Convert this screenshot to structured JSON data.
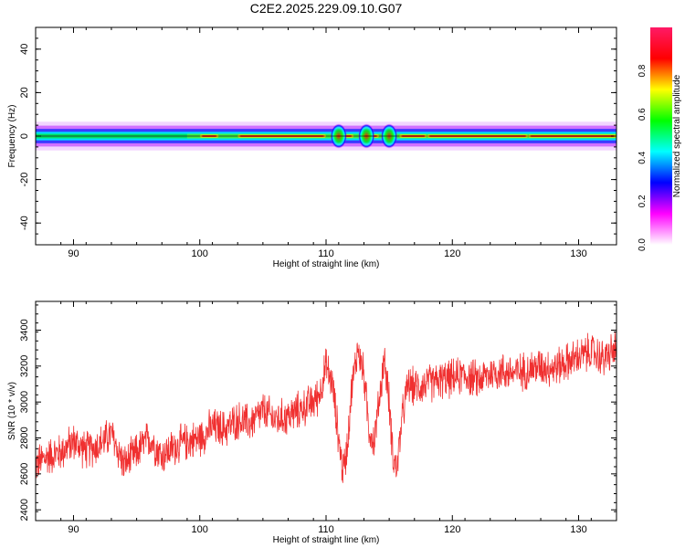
{
  "chart_data": [
    {
      "id": "spectrogram",
      "type": "heatmap",
      "title": "C2E2.2025.229.09.10.G07",
      "xlabel": "Height of straight line (km)",
      "ylabel": "Frequency (Hz)",
      "xlim": [
        87,
        133
      ],
      "ylim": [
        -50,
        50
      ],
      "xticks": [
        90,
        100,
        110,
        120,
        130
      ],
      "yticks": [
        40,
        20,
        0,
        -20,
        -40
      ],
      "colorbar": {
        "label": "Normalized spectral amplitude",
        "ticks": [
          "0.0",
          "0.2",
          "0.4",
          "0.6",
          "0.8"
        ],
        "range": [
          0,
          1
        ],
        "colors": [
          "#ffffff",
          "#ff00ff",
          "#0000ff",
          "#00ffff",
          "#00ff00",
          "#ffff00",
          "#ff0000",
          "#ff1a66"
        ]
      },
      "band_center_hz": 0,
      "band_halfwidth_hz": 3
    },
    {
      "id": "snr",
      "type": "line",
      "xlabel": "Height of straight line (km)",
      "ylabel": "SNR (10 * v/v)",
      "xlim": [
        87,
        133
      ],
      "ylim": [
        2340,
        3560
      ],
      "xticks": [
        90,
        100,
        110,
        120,
        130
      ],
      "yticks": [
        2400,
        2600,
        2800,
        3000,
        3200,
        3400
      ],
      "series": [
        {
          "color": "#f03030",
          "x": [
            87,
            88,
            89,
            90,
            91,
            92,
            93,
            94,
            95,
            96,
            97,
            98,
            99,
            100,
            101,
            102,
            103,
            104,
            105,
            106,
            107,
            108,
            109,
            109.5,
            110,
            110.5,
            111,
            111.3,
            111.6,
            112,
            112.5,
            113,
            113.4,
            113.8,
            114.2,
            114.6,
            115,
            115.3,
            115.6,
            116,
            116.5,
            117,
            118,
            119,
            120,
            121,
            122,
            123,
            124,
            125,
            126,
            127,
            128,
            129,
            130,
            131,
            132,
            133
          ],
          "y": [
            2650,
            2700,
            2720,
            2780,
            2730,
            2760,
            2820,
            2650,
            2720,
            2800,
            2700,
            2750,
            2780,
            2800,
            2860,
            2850,
            2900,
            2880,
            2950,
            2900,
            2920,
            2960,
            3000,
            3050,
            3200,
            3100,
            2800,
            2620,
            2700,
            3050,
            3300,
            3150,
            2850,
            2780,
            3000,
            3250,
            3000,
            2700,
            2620,
            2900,
            3100,
            3080,
            3100,
            3120,
            3130,
            3150,
            3120,
            3160,
            3170,
            3160,
            3180,
            3200,
            3190,
            3220,
            3250,
            3280,
            3240,
            3300
          ],
          "noise_amplitude": 90
        }
      ]
    }
  ]
}
